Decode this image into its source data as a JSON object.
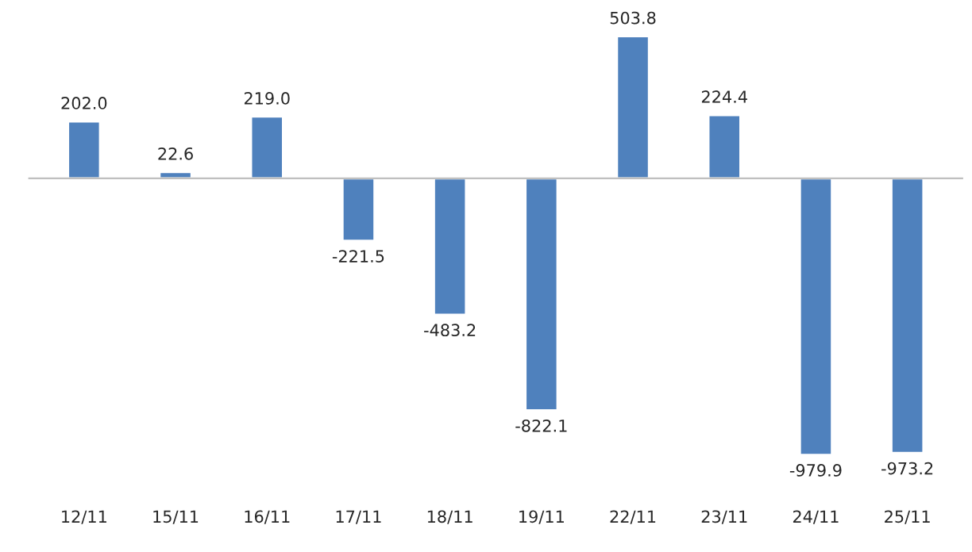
{
  "chart_data": {
    "type": "bar",
    "categories": [
      "12/11",
      "15/11",
      "16/11",
      "17/11",
      "18/11",
      "19/11",
      "22/11",
      "23/11",
      "24/11",
      "25/11"
    ],
    "series": [
      {
        "color": "#4f81bd",
        "values": [
          202.0,
          22.6,
          219.0,
          -221.5,
          -483.2,
          -822.1,
          503.8,
          224.4,
          -979.9,
          -973.2
        ],
        "value_labels": [
          "202.0",
          "22.6",
          "219.0",
          "-221.5",
          "-483.2",
          "-822.1",
          "503.8",
          "224.4",
          "-979.9",
          "-973.2"
        ]
      }
    ],
    "grid": false
  }
}
